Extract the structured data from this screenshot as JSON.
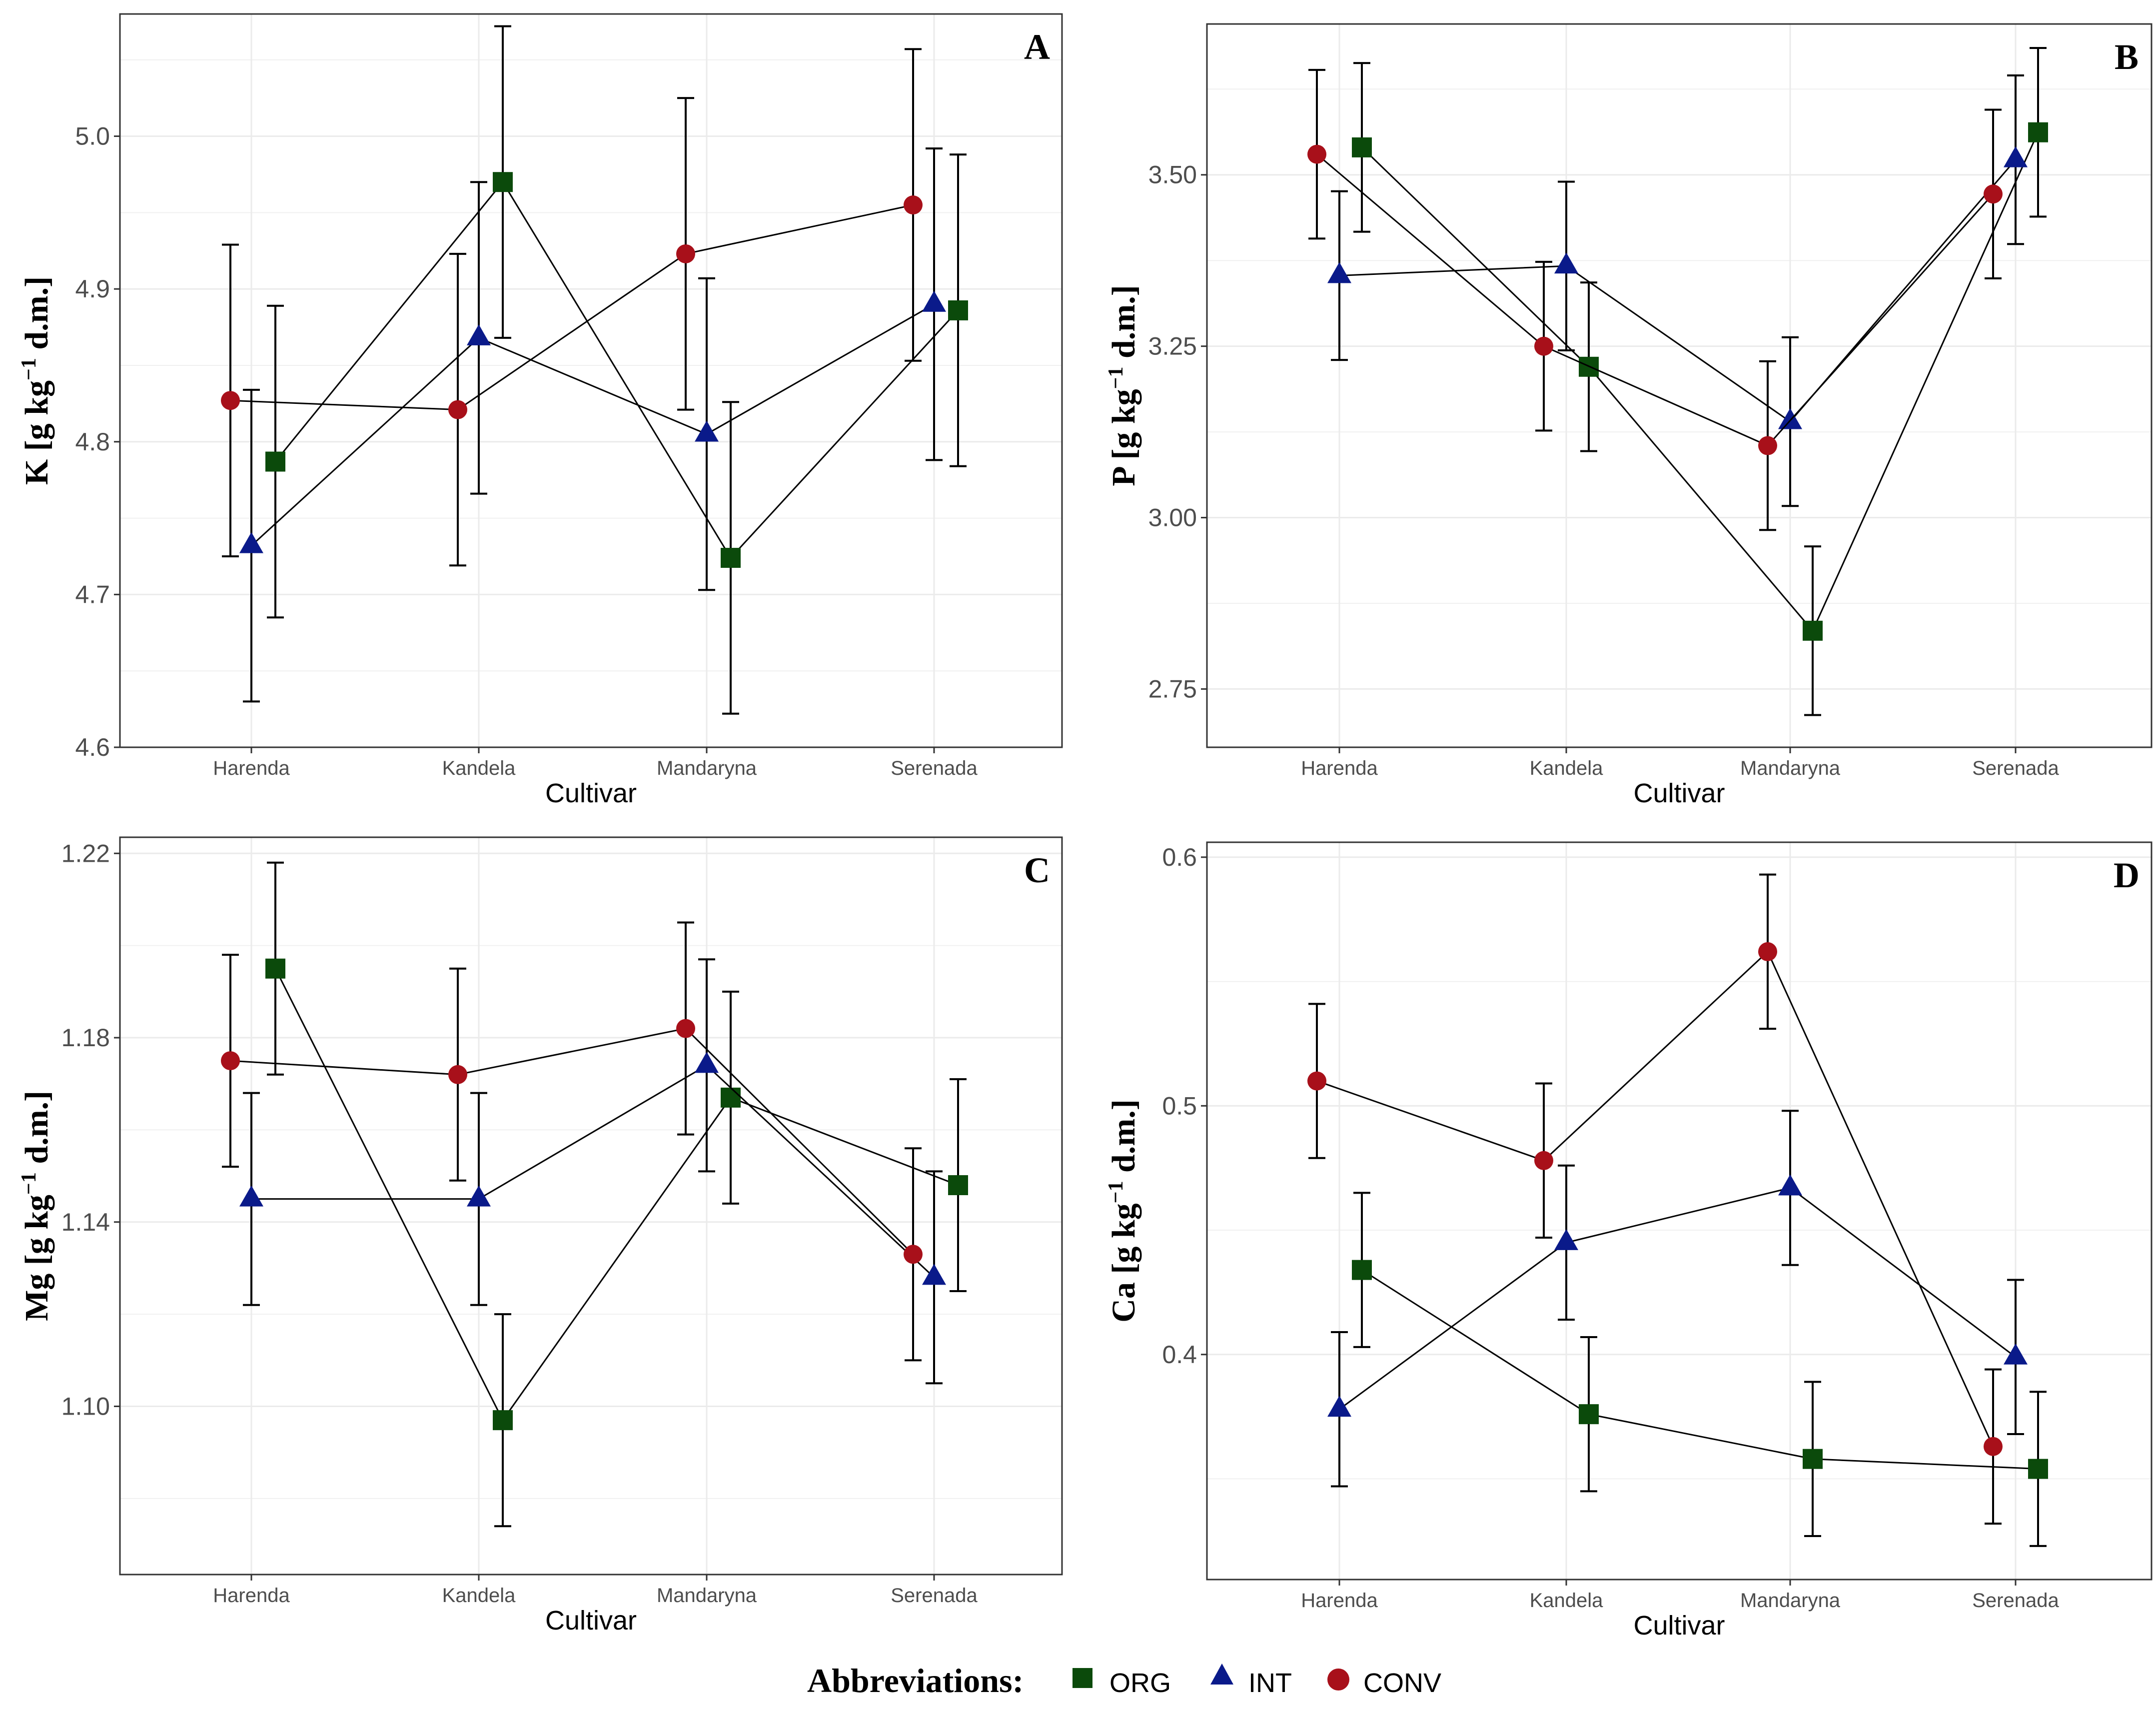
{
  "colors": {
    "ORG": "#0b4a0b",
    "INT": "#0a1a8a",
    "CONV": "#a8101a"
  },
  "legend": {
    "title": "Abbreviations:",
    "items": [
      {
        "key": "ORG",
        "label": "ORG",
        "marker": "square"
      },
      {
        "key": "INT",
        "label": "INT",
        "marker": "triangle"
      },
      {
        "key": "CONV",
        "label": "CONV",
        "marker": "circle"
      }
    ]
  },
  "chart_data": [
    {
      "type": "line",
      "panel": "A",
      "xlabel": "Cultivar",
      "ylabel_main": "K [g kg",
      "ylabel_sup": "−1",
      "ylabel_end": " d.m.]",
      "categories": [
        "Harenda",
        "Kandela",
        "Mandaryna",
        "Serenada"
      ],
      "ylim": [
        4.6,
        5.08
      ],
      "yticks": [
        4.6,
        4.7,
        4.8,
        4.9,
        5.0
      ],
      "ytick_labels": [
        "4.6",
        "4.7",
        "4.8",
        "4.9",
        "5.0"
      ],
      "series": [
        {
          "name": "ORG",
          "values": [
            4.787,
            4.97,
            4.724,
            4.886
          ],
          "err": [
            0.102,
            0.102,
            0.102,
            0.102
          ]
        },
        {
          "name": "INT",
          "values": [
            4.732,
            4.868,
            4.805,
            4.89
          ],
          "err": [
            0.102,
            0.102,
            0.102,
            0.102
          ]
        },
        {
          "name": "CONV",
          "values": [
            4.827,
            4.821,
            4.923,
            4.955
          ],
          "err": [
            0.102,
            0.102,
            0.102,
            0.102
          ]
        }
      ]
    },
    {
      "type": "line",
      "panel": "B",
      "xlabel": "Cultivar",
      "ylabel_main": "P [g kg",
      "ylabel_sup": "−1",
      "ylabel_end": " d.m.]",
      "categories": [
        "Harenda",
        "Kandela",
        "Mandaryna",
        "Serenada"
      ],
      "ylim": [
        2.665,
        3.72
      ],
      "yticks": [
        2.75,
        3.0,
        3.25,
        3.5
      ],
      "ytick_labels": [
        "2.75",
        "3.00",
        "3.25",
        "3.50"
      ],
      "series": [
        {
          "name": "ORG",
          "values": [
            3.54,
            3.22,
            2.835,
            3.562
          ],
          "err": [
            0.123,
            0.123,
            0.123,
            0.123
          ]
        },
        {
          "name": "INT",
          "values": [
            3.353,
            3.367,
            3.14,
            3.522
          ],
          "err": [
            0.123,
            0.123,
            0.123,
            0.123
          ]
        },
        {
          "name": "CONV",
          "values": [
            3.53,
            3.25,
            3.105,
            3.472
          ],
          "err": [
            0.123,
            0.123,
            0.123,
            0.123
          ]
        }
      ]
    },
    {
      "type": "line",
      "panel": "C",
      "xlabel": "Cultivar",
      "ylabel_main": "Mg [g kg",
      "ylabel_sup": "−1",
      "ylabel_end": " d.m.]",
      "categories": [
        "Harenda",
        "Kandela",
        "Mandaryna",
        "Serenada"
      ],
      "ylim": [
        1.0635,
        1.2235
      ],
      "yticks": [
        1.1,
        1.14,
        1.18,
        1.22
      ],
      "ytick_labels": [
        "1.10",
        "1.14",
        "1.18",
        "1.22"
      ],
      "series": [
        {
          "name": "ORG",
          "values": [
            1.195,
            1.097,
            1.167,
            1.148
          ],
          "err": [
            0.023,
            0.023,
            0.023,
            0.023
          ]
        },
        {
          "name": "INT",
          "values": [
            1.145,
            1.145,
            1.174,
            1.128
          ],
          "err": [
            0.023,
            0.023,
            0.023,
            0.023
          ]
        },
        {
          "name": "CONV",
          "values": [
            1.175,
            1.172,
            1.182,
            1.133
          ],
          "err": [
            0.023,
            0.023,
            0.023,
            0.023
          ]
        }
      ]
    },
    {
      "type": "line",
      "panel": "D",
      "xlabel": "Cultivar",
      "ylabel_main": "Ca [g kg",
      "ylabel_sup": "−1",
      "ylabel_end": " d.m.]",
      "categories": [
        "Harenda",
        "Kandela",
        "Mandaryna",
        "Serenada"
      ],
      "ylim": [
        0.3095,
        0.606
      ],
      "yticks": [
        0.4,
        0.5,
        0.6
      ],
      "ytick_labels": [
        "0.4",
        "0.5",
        "0.6"
      ],
      "series": [
        {
          "name": "ORG",
          "values": [
            0.434,
            0.376,
            0.358,
            0.354
          ],
          "err": [
            0.031,
            0.031,
            0.031,
            0.031
          ]
        },
        {
          "name": "INT",
          "values": [
            0.378,
            0.445,
            0.467,
            0.399
          ],
          "err": [
            0.031,
            0.031,
            0.031,
            0.031
          ]
        },
        {
          "name": "CONV",
          "values": [
            0.51,
            0.478,
            0.562,
            0.363
          ],
          "err": [
            0.031,
            0.031,
            0.031,
            0.031
          ]
        }
      ]
    }
  ]
}
